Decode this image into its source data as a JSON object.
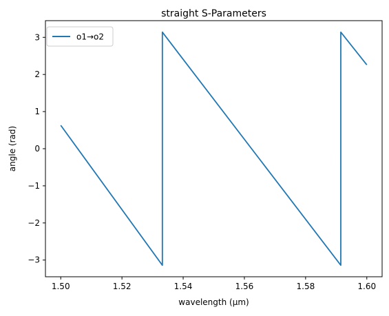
{
  "chart_data": {
    "type": "line",
    "title": "straight S-Parameters",
    "xlabel": "wavelength (µm)",
    "ylabel": "angle (rad)",
    "xlim": [
      1.495,
      1.605
    ],
    "ylim": [
      -3.45,
      3.45
    ],
    "x_ticks": [
      1.5,
      1.52,
      1.54,
      1.56,
      1.58,
      1.6
    ],
    "x_tick_labels": [
      "1.50",
      "1.52",
      "1.54",
      "1.56",
      "1.58",
      "1.60"
    ],
    "y_ticks": [
      -3,
      -2,
      -1,
      0,
      1,
      2,
      3
    ],
    "y_tick_labels": [
      "−3",
      "−2",
      "−1",
      "0",
      "1",
      "2",
      "3"
    ],
    "grid": false,
    "legend_position": "top-left",
    "series": [
      {
        "name": "o1→o2",
        "color": "#1f77b4",
        "x": [
          1.5,
          1.5332,
          1.5332,
          1.5915,
          1.5915,
          1.6
        ],
        "y": [
          0.63,
          -3.14,
          3.14,
          -3.14,
          3.14,
          2.26
        ]
      }
    ]
  }
}
